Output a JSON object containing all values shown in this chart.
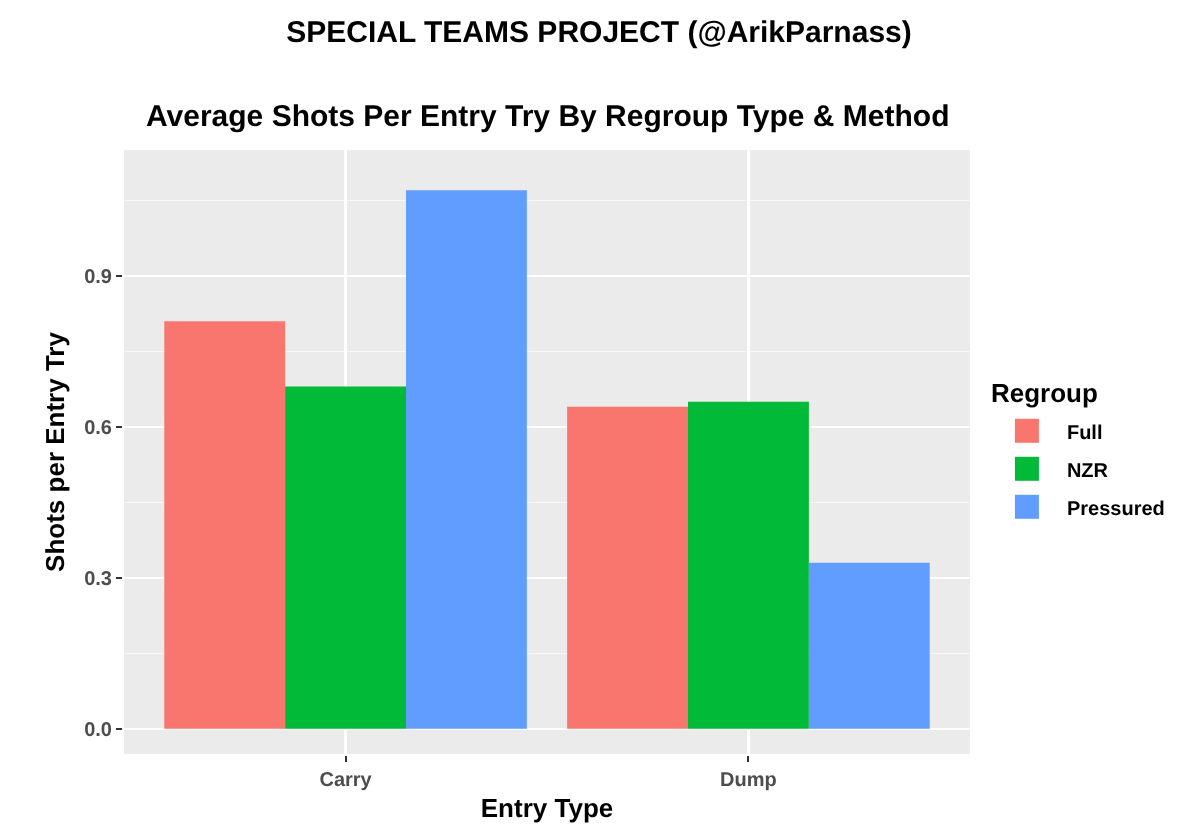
{
  "chart_data": {
    "type": "bar",
    "title": "SPECIAL TEAMS PROJECT (@ArikParnass)",
    "subtitle": "Average Shots Per Entry Try By Regroup Type & Method",
    "xlabel": "Entry Type",
    "ylabel": "Shots per Entry Try",
    "legend_title": "Regroup",
    "categories": [
      "Carry",
      "Dump"
    ],
    "series": [
      {
        "name": "Full",
        "color": "#f8766d",
        "values": [
          0.81,
          0.64
        ]
      },
      {
        "name": "NZR",
        "color": "#00ba38",
        "values": [
          0.68,
          0.65
        ]
      },
      {
        "name": "Pressured",
        "color": "#619cff",
        "values": [
          1.07,
          0.33
        ]
      }
    ],
    "ylim": [
      -0.05,
      1.15
    ],
    "yticks": [
      {
        "value": 0,
        "label": "0.0"
      },
      0.3,
      0.6,
      0.9
    ],
    "grid": true,
    "legend": "right"
  }
}
